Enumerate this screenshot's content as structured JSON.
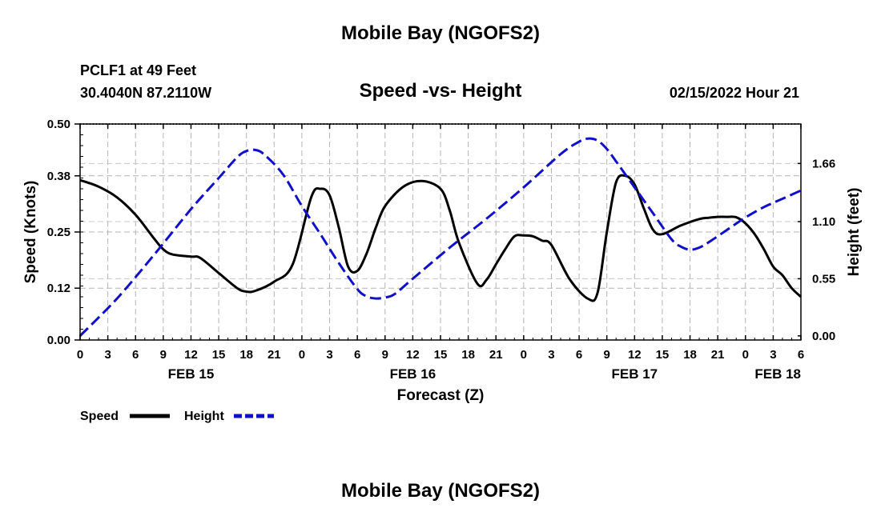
{
  "header": {
    "title": "Mobile Bay (NGOFS2)",
    "station": "PCLF1 at 49 Feet",
    "coords": "30.4040N  87.2110W",
    "subtitle": "Speed -vs- Height",
    "datetime": "02/15/2022 Hour 21"
  },
  "footer": {
    "title": "Mobile Bay (NGOFS2)"
  },
  "chart_data": {
    "type": "line",
    "title": "Speed -vs- Height",
    "xlabel": "Forecast (Z)",
    "ylabel": "Speed (Knots)",
    "y2label": "Height (feet)",
    "x_hours_range": [
      0,
      78
    ],
    "x_tick_labels": [
      "0",
      "3",
      "6",
      "9",
      "12",
      "15",
      "18",
      "21",
      "0",
      "3",
      "6",
      "9",
      "12",
      "15",
      "18",
      "21",
      "0",
      "3",
      "6",
      "9",
      "12",
      "15",
      "18",
      "21",
      "0",
      "3",
      "6"
    ],
    "date_labels": [
      {
        "label": "FEB 15",
        "hour": 12
      },
      {
        "label": "FEB 16",
        "hour": 36
      },
      {
        "label": "FEB 17",
        "hour": 60
      },
      {
        "label": "FEB 18",
        "hour": 78
      }
    ],
    "ylim": [
      0,
      0.5
    ],
    "y_ticks": [
      "0.00",
      "0.12",
      "0.25",
      "0.38",
      "0.50"
    ],
    "y2lim": [
      -0.04,
      2.04
    ],
    "y2_ticks": [
      "0.00",
      "0.55",
      "1.10",
      "1.66"
    ],
    "grid": true,
    "legend": [
      {
        "name": "Speed",
        "color": "#000000",
        "style": "solid"
      },
      {
        "name": "Height",
        "color": "#1010c8",
        "style": "dashed"
      }
    ],
    "series": [
      {
        "name": "Speed",
        "axis": "left",
        "color": "#000000",
        "x": [
          0,
          2,
          4,
          6,
          8,
          9,
          10,
          12,
          13,
          15,
          17,
          18,
          19,
          21,
          23,
          25,
          26,
          27,
          28,
          29,
          30,
          31,
          32,
          33,
          35,
          37,
          39,
          40,
          41,
          43,
          44,
          45,
          46,
          47,
          48,
          49,
          50,
          51,
          53,
          55,
          56,
          57,
          58,
          59,
          60,
          61,
          62,
          63,
          65,
          67,
          68,
          69,
          70,
          71,
          72,
          73,
          74,
          75,
          76,
          77,
          78
        ],
        "values": [
          0.37,
          0.355,
          0.33,
          0.29,
          0.235,
          0.21,
          0.198,
          0.193,
          0.19,
          0.155,
          0.12,
          0.112,
          0.114,
          0.135,
          0.175,
          0.33,
          0.35,
          0.335,
          0.26,
          0.17,
          0.16,
          0.2,
          0.26,
          0.31,
          0.355,
          0.368,
          0.35,
          0.3,
          0.225,
          0.13,
          0.14,
          0.175,
          0.21,
          0.24,
          0.242,
          0.24,
          0.23,
          0.22,
          0.14,
          0.095,
          0.11,
          0.25,
          0.365,
          0.38,
          0.36,
          0.305,
          0.255,
          0.245,
          0.265,
          0.28,
          0.283,
          0.285,
          0.285,
          0.284,
          0.27,
          0.245,
          0.21,
          0.17,
          0.15,
          0.12,
          0.1
        ]
      },
      {
        "name": "Height",
        "axis": "right",
        "color": "#1010c8",
        "x": [
          0,
          4,
          8,
          12,
          15,
          17,
          18,
          19,
          20,
          22,
          24,
          26,
          28,
          30,
          31,
          32,
          33,
          34,
          36,
          40,
          44,
          48,
          52,
          54,
          55,
          56,
          57,
          58,
          60,
          62,
          64,
          65,
          66,
          67,
          68,
          70,
          72,
          74,
          76,
          78
        ],
        "values": [
          0.0,
          0.36,
          0.78,
          1.22,
          1.52,
          1.72,
          1.78,
          1.79,
          1.74,
          1.55,
          1.25,
          0.98,
          0.7,
          0.45,
          0.38,
          0.36,
          0.37,
          0.4,
          0.55,
          0.85,
          1.13,
          1.43,
          1.75,
          1.87,
          1.9,
          1.88,
          1.8,
          1.68,
          1.43,
          1.18,
          0.93,
          0.86,
          0.83,
          0.85,
          0.9,
          1.02,
          1.14,
          1.24,
          1.32,
          1.4
        ]
      }
    ]
  }
}
